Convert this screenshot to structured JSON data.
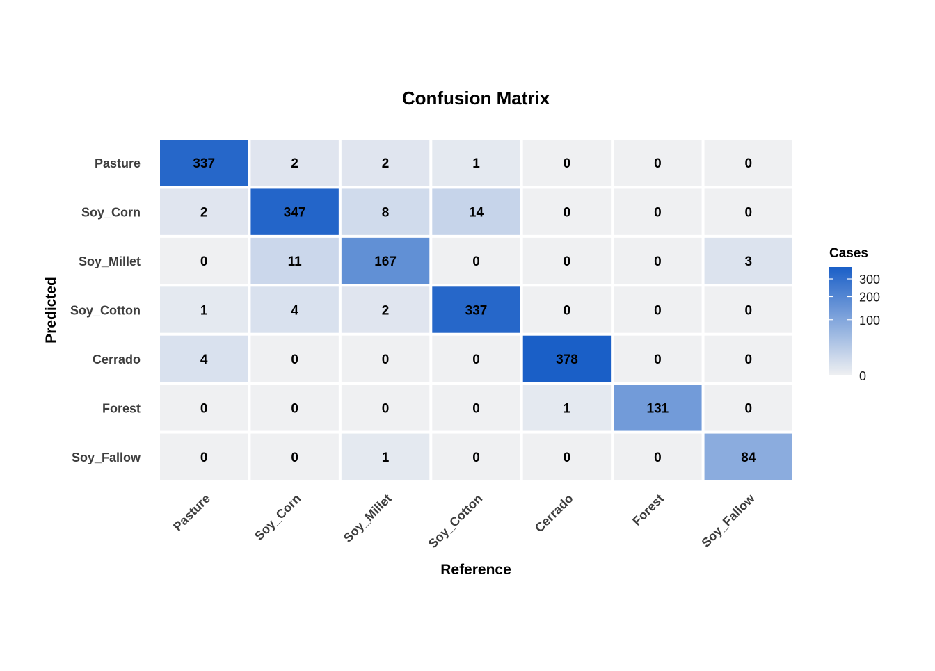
{
  "chart_data": {
    "type": "heatmap",
    "title": "Confusion Matrix",
    "xlabel": "Reference",
    "ylabel": "Predicted",
    "x_categories": [
      "Pasture",
      "Soy_Corn",
      "Soy_Millet",
      "Soy_Cotton",
      "Cerrado",
      "Forest",
      "Soy_Fallow"
    ],
    "y_categories": [
      "Pasture",
      "Soy_Corn",
      "Soy_Millet",
      "Soy_Cotton",
      "Cerrado",
      "Forest",
      "Soy_Fallow"
    ],
    "values": [
      [
        337,
        2,
        2,
        1,
        0,
        0,
        0
      ],
      [
        2,
        347,
        8,
        14,
        0,
        0,
        0
      ],
      [
        0,
        11,
        167,
        0,
        0,
        0,
        3
      ],
      [
        1,
        4,
        2,
        337,
        0,
        0,
        0
      ],
      [
        4,
        0,
        0,
        0,
        378,
        0,
        0
      ],
      [
        0,
        0,
        0,
        0,
        1,
        131,
        0
      ],
      [
        0,
        0,
        1,
        0,
        0,
        0,
        84
      ]
    ],
    "legend": {
      "title": "Cases",
      "ticks": [
        0,
        100,
        200,
        300
      ],
      "scale": "sqrt",
      "range": [
        0,
        378
      ],
      "placement": "right"
    },
    "colors": {
      "low": "#eff0f2",
      "high": "#1a5fc7"
    },
    "grid": false
  }
}
